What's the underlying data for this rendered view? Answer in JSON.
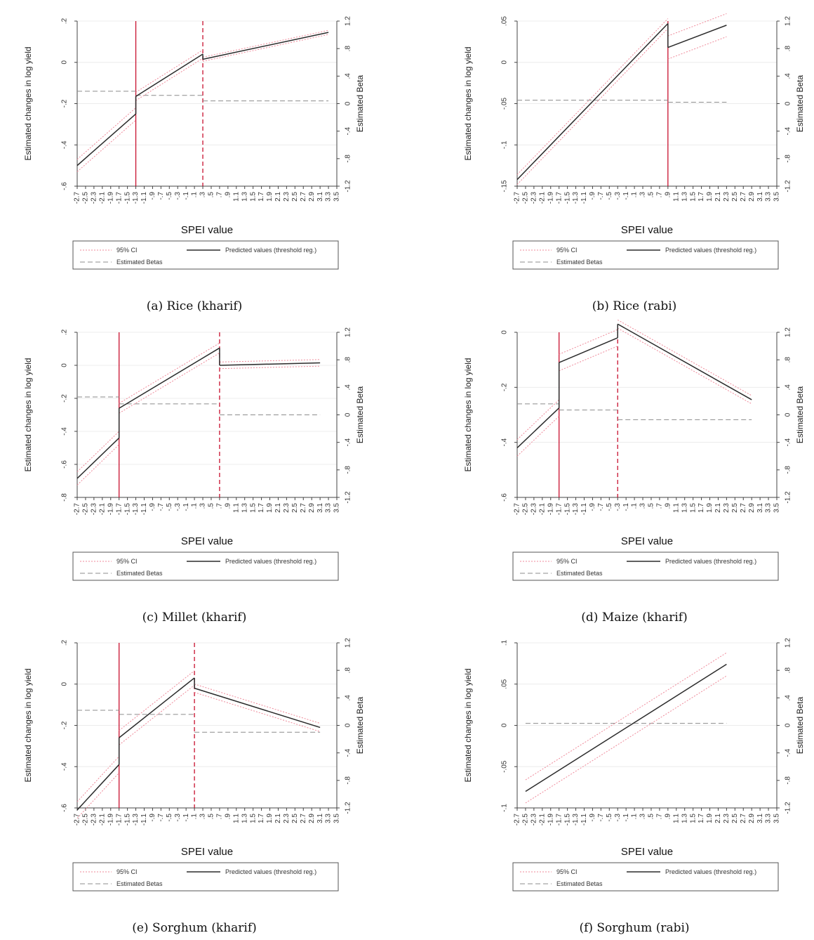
{
  "figure": {
    "xlabel": "SPEI value",
    "ylabel_left": "Estimated changes in log yield",
    "ylabel_right": "Estimated Beta",
    "legend": {
      "ci": "95% CI",
      "pred": "Predicted values (threshold reg.)",
      "beta": "Estimated Betas"
    },
    "x_ticks": [
      "-2.7",
      "-2.5",
      "-2.3",
      "-2.1",
      "-1.9",
      "-1.7",
      "-1.5",
      "-1.3",
      "-1.1",
      "-.9",
      "-.7",
      "-.5",
      "-.3",
      "-.1",
      ".1",
      ".3",
      ".5",
      ".7",
      ".9",
      "1.1",
      "1.3",
      "1.5",
      "1.7",
      "1.9",
      "2.1",
      "2.3",
      "2.5",
      "2.7",
      "2.9",
      "3.1",
      "3.3",
      "3.5"
    ],
    "right_ticks": [
      "1.2",
      ".8",
      ".4",
      "0",
      "-.4",
      "-.8",
      "-1.2"
    ]
  },
  "chart_data": [
    {
      "type": "line",
      "caption": "(a) Rice (kharif)",
      "xlim": [
        -2.7,
        3.5
      ],
      "ylim": [
        -0.6,
        0.2
      ],
      "yticks": [
        0.2,
        0,
        -0.2,
        -0.4,
        -0.6
      ],
      "ytick_labels": [
        ".2",
        "0",
        "-.2",
        "-.4",
        "-.6"
      ],
      "thresholds": [
        {
          "x": -1.3,
          "style": "solid"
        },
        {
          "x": 0.3,
          "style": "dashed"
        }
      ],
      "segments": [
        {
          "x0": -2.7,
          "x1": -1.3,
          "y0": -0.5,
          "y1": -0.25,
          "ci": 0.03
        },
        {
          "x0": -1.3,
          "x1": 0.3,
          "y0": -0.165,
          "y1": 0.04,
          "ci": 0.02
        },
        {
          "x0": 0.3,
          "x1": 3.3,
          "y0": 0.015,
          "y1": 0.145,
          "ci": 0.01
        }
      ],
      "betas": [
        {
          "x0": -2.7,
          "x1": -1.3,
          "beta": 0.18
        },
        {
          "x0": -1.3,
          "x1": 0.3,
          "beta": 0.12
        },
        {
          "x0": 0.3,
          "x1": 3.3,
          "beta": 0.04
        }
      ]
    },
    {
      "type": "line",
      "caption": "(b) Rice (rabi)",
      "xlim": [
        -2.7,
        3.5
      ],
      "ylim": [
        -0.15,
        0.05
      ],
      "yticks": [
        0.05,
        0,
        -0.05,
        -0.1,
        -0.15
      ],
      "ytick_labels": [
        ".05",
        "0",
        "-.05",
        "-.1",
        "-.15"
      ],
      "thresholds": [
        {
          "x": 0.9,
          "style": "solid"
        }
      ],
      "segments": [
        {
          "x0": -2.7,
          "x1": 0.9,
          "y0": -0.142,
          "y1": 0.047,
          "ci": 0.006
        },
        {
          "x0": 0.9,
          "x1": 2.3,
          "y0": 0.018,
          "y1": 0.045,
          "ci": 0.014
        }
      ],
      "betas": [
        {
          "x0": -2.7,
          "x1": 0.9,
          "beta": 0.05
        },
        {
          "x0": 0.9,
          "x1": 2.3,
          "beta": 0.02
        }
      ]
    },
    {
      "type": "line",
      "caption": "(c) Millet (kharif)",
      "xlim": [
        -2.7,
        3.5
      ],
      "ylim": [
        -0.8,
        0.2
      ],
      "yticks": [
        0.2,
        0,
        -0.2,
        -0.4,
        -0.6,
        -0.8
      ],
      "ytick_labels": [
        ".2",
        "0",
        "-.2",
        "-.4",
        "-.6",
        "-.8"
      ],
      "thresholds": [
        {
          "x": -1.7,
          "style": "solid"
        },
        {
          "x": 0.7,
          "style": "dashed"
        }
      ],
      "segments": [
        {
          "x0": -2.7,
          "x1": -1.7,
          "y0": -0.685,
          "y1": -0.44,
          "ci": 0.04
        },
        {
          "x0": -1.7,
          "x1": 0.7,
          "y0": -0.26,
          "y1": 0.105,
          "ci": 0.03
        },
        {
          "x0": 0.7,
          "x1": 3.1,
          "y0": 0.0,
          "y1": 0.015,
          "ci": 0.02
        }
      ],
      "betas": [
        {
          "x0": -2.7,
          "x1": -1.7,
          "beta": 0.26
        },
        {
          "x0": -1.7,
          "x1": 0.7,
          "beta": 0.16
        },
        {
          "x0": 0.7,
          "x1": 3.1,
          "beta": 0.0
        }
      ]
    },
    {
      "type": "line",
      "caption": "(d) Maize (kharif)",
      "xlim": [
        -2.7,
        3.5
      ],
      "ylim": [
        -0.6,
        0.0
      ],
      "yticks": [
        0,
        -0.2,
        -0.4,
        -0.6
      ],
      "ytick_labels": [
        "0",
        "-.2",
        "-.4",
        "-.6"
      ],
      "thresholds": [
        {
          "x": -1.7,
          "style": "solid"
        },
        {
          "x": -0.3,
          "style": "dashed"
        }
      ],
      "segments": [
        {
          "x0": -2.7,
          "x1": -1.7,
          "y0": -0.42,
          "y1": -0.275,
          "ci": 0.03
        },
        {
          "x0": -1.7,
          "x1": -0.3,
          "y0": -0.11,
          "y1": -0.02,
          "ci": 0.03
        },
        {
          "x0": -0.3,
          "x1": 2.9,
          "y0": 0.03,
          "y1": -0.245,
          "ci": 0.015
        }
      ],
      "betas": [
        {
          "x0": -2.7,
          "x1": -1.7,
          "beta": 0.16
        },
        {
          "x0": -1.7,
          "x1": -0.3,
          "beta": 0.07
        },
        {
          "x0": -0.3,
          "x1": 2.9,
          "beta": -0.07
        }
      ]
    },
    {
      "type": "line",
      "caption": "(e) Sorghum (kharif)",
      "xlim": [
        -2.7,
        3.5
      ],
      "ylim": [
        -0.6,
        0.2
      ],
      "yticks": [
        0.2,
        0,
        -0.2,
        -0.4,
        -0.6
      ],
      "ytick_labels": [
        ".2",
        "0",
        "-.2",
        "-.4",
        "-.6"
      ],
      "thresholds": [
        {
          "x": -1.7,
          "style": "solid"
        },
        {
          "x": 0.1,
          "style": "dashed"
        }
      ],
      "segments": [
        {
          "x0": -2.7,
          "x1": -1.7,
          "y0": -0.61,
          "y1": -0.39,
          "ci": 0.04
        },
        {
          "x0": -1.7,
          "x1": 0.1,
          "y0": -0.26,
          "y1": 0.03,
          "ci": 0.035
        },
        {
          "x0": 0.1,
          "x1": 3.1,
          "y0": -0.02,
          "y1": -0.21,
          "ci": 0.02
        }
      ],
      "betas": [
        {
          "x0": -2.7,
          "x1": -1.7,
          "beta": 0.22
        },
        {
          "x0": -1.7,
          "x1": 0.1,
          "beta": 0.16
        },
        {
          "x0": 0.1,
          "x1": 3.1,
          "beta": -0.1
        }
      ]
    },
    {
      "type": "line",
      "caption": "(f) Sorghum (rabi)",
      "xlim": [
        -2.7,
        3.5
      ],
      "ylim": [
        -0.1,
        0.1
      ],
      "yticks": [
        0.1,
        0.05,
        0,
        -0.05,
        -0.1
      ],
      "ytick_labels": [
        ".1",
        ".05",
        "0",
        "-.05",
        "-.1"
      ],
      "thresholds": [],
      "segments": [
        {
          "x0": -2.5,
          "x1": 2.3,
          "y0": -0.08,
          "y1": 0.074,
          "ci": 0.014
        }
      ],
      "betas": [
        {
          "x0": -2.5,
          "x1": 2.3,
          "beta": 0.03
        }
      ]
    }
  ]
}
